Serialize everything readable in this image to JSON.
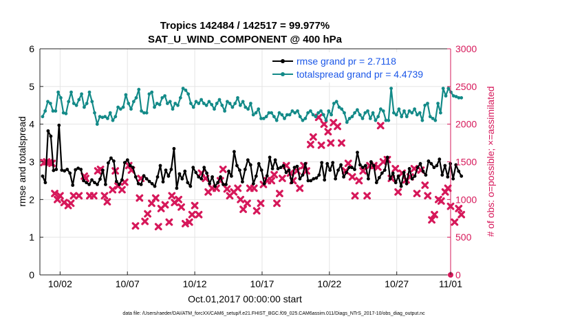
{
  "chart_data": {
    "type": "line",
    "title": "Tropics 142484 / 142517 = 99.977%",
    "subtitle": "SAT_U_WIND_COMPONENT @ 400 hPa",
    "xlabel": "Oct.01,2017 00:00:00 start",
    "ylabel_left": "rmse and totalspread",
    "ylabel_right": "# of obs: o=possible; ×=assimilated",
    "footer": "data file: /Users/raeder/DAI/ATM_forcXX/CAM6_setup/f.e21.FHIST_BGC.f09_025.CAM6assim.011/Diags_NTrS_2017-10/obs_diag_output.nc",
    "xlim": [
      0.5,
      31.0
    ],
    "ylim_left": [
      0,
      6
    ],
    "ylim_right": [
      0,
      3000
    ],
    "x_ticks": [
      2,
      7,
      12,
      17,
      22,
      27,
      32
    ],
    "x_tick_labels": [
      "10/02",
      "10/07",
      "10/12",
      "10/17",
      "10/22",
      "10/27",
      "11/01"
    ],
    "y_left_ticks": [
      "0",
      "1",
      "2",
      "3",
      "4",
      "5",
      "6"
    ],
    "y_right_ticks": [
      "0",
      "500",
      "1000",
      "1500",
      "2000",
      "2500",
      "3000"
    ],
    "colors": {
      "rmse": "#000000",
      "spread": "#138a88",
      "obs": "#d6185a",
      "legend_text": "#1a56e8"
    },
    "series": [
      {
        "name": "rmse grand pr = 2.7118",
        "axis": "left",
        "color": "#000000",
        "values": [
          2.62,
          2.45,
          3.82,
          3.68,
          2.77,
          2.8,
          3.97,
          2.78,
          2.76,
          2.8,
          2.7,
          2.38,
          2.79,
          2.83,
          2.8,
          2.5,
          2.45,
          2.4,
          2.52,
          2.45,
          2.4,
          2.54,
          2.78,
          2.4,
          2.97,
          3.1,
          3.02,
          2.48,
          2.4,
          2.52,
          2.98,
          3.05,
          2.9,
          2.85,
          2.6,
          2.42,
          2.4,
          2.63,
          2.55,
          2.48,
          2.42,
          2.35,
          2.6,
          2.9,
          2.47,
          2.78,
          2.62,
          2.8,
          3.35,
          2.3,
          2.68,
          2.55,
          2.75,
          2.45,
          2.35,
          2.85,
          2.72,
          2.6,
          2.55,
          2.85,
          2.7,
          2.42,
          2.6,
          2.35,
          2.45,
          2.6,
          2.4,
          2.4,
          2.75,
          2.62,
          3.27,
          2.9,
          2.78,
          2.47,
          2.8,
          3.05,
          2.92,
          2.42,
          2.62,
          2.95,
          2.78,
          2.42,
          2.63,
          3.12,
          2.82,
          3.05,
          2.82,
          2.85,
          2.9,
          2.72,
          2.78,
          2.45,
          2.85,
          2.88,
          2.55,
          2.65,
          2.95,
          2.5,
          2.5,
          2.55,
          2.57,
          2.65,
          2.98,
          2.52,
          2.95,
          2.78,
          2.98,
          2.55,
          2.78,
          2.92,
          2.6,
          2.72,
          2.85,
          2.85,
          2.8,
          3.25,
          2.92,
          2.85,
          2.9,
          2.55,
          3.0,
          2.9,
          2.45,
          2.58,
          2.7,
          2.78,
          3.12,
          2.55,
          2.7,
          2.45,
          2.62,
          2.35,
          2.72,
          2.42,
          2.82,
          2.55,
          2.62,
          2.85,
          2.95,
          2.75,
          2.65,
          3.02,
          2.95,
          2.85,
          2.9,
          3.07,
          2.65,
          2.9,
          2.6,
          2.95,
          2.55,
          2.92,
          2.75,
          2.62
        ]
      },
      {
        "name": "totalspread grand pr = 4.4739",
        "axis": "left",
        "color": "#138a88",
        "values": [
          4.2,
          4.35,
          4.6,
          4.55,
          4.35,
          4.35,
          4.85,
          4.7,
          4.3,
          4.28,
          4.6,
          4.85,
          4.55,
          4.5,
          4.65,
          4.8,
          4.45,
          4.55,
          4.85,
          4.6,
          4.3,
          4.0,
          4.2,
          4.18,
          4.2,
          4.15,
          4.3,
          4.1,
          4.2,
          4.45,
          4.4,
          4.45,
          4.78,
          4.55,
          4.4,
          4.6,
          4.7,
          4.92,
          4.35,
          4.3,
          4.3,
          4.8,
          4.85,
          4.45,
          4.55,
          4.52,
          4.7,
          4.75,
          4.55,
          4.6,
          4.4,
          4.55,
          4.5,
          4.7,
          4.95,
          4.9,
          4.8,
          4.55,
          4.45,
          4.6,
          4.55,
          4.65,
          4.55,
          4.5,
          4.6,
          4.52,
          4.4,
          4.55,
          4.65,
          4.5,
          4.35,
          4.6,
          4.55,
          4.45,
          4.55,
          4.7,
          4.5,
          4.6,
          4.45,
          4.4,
          4.55,
          4.25,
          4.3,
          4.4,
          4.15,
          4.15,
          4.2,
          4.3,
          4.3,
          4.2,
          4.1,
          4.3,
          4.25,
          4.15,
          4.25,
          4.25,
          4.35,
          4.3,
          4.35,
          4.2,
          4.1,
          4.15,
          4.3,
          4.35,
          4.25,
          4.2,
          4.3,
          4.35,
          4.25,
          4.1,
          4.35,
          4.25,
          4.55,
          4.6,
          4.45,
          4.4,
          4.3,
          4.05,
          4.15,
          4.2,
          4.3,
          4.38,
          4.25,
          4.15,
          4.3,
          4.35,
          4.15,
          4.3,
          4.1,
          4.2,
          4.4,
          4.35,
          4.1,
          4.1,
          4.95,
          4.3,
          4.25,
          4.4,
          4.2,
          4.35,
          4.2,
          4.35,
          4.3,
          4.4,
          4.25,
          4.3,
          4.1,
          4.5,
          4.55,
          4.2,
          4.15,
          4.1,
          4.55,
          4.3,
          4.95,
          4.75,
          4.95,
          4.85,
          4.75,
          4.73,
          4.7,
          4.7
        ]
      }
    ],
    "obs_assimilated": {
      "name": "# of obs assimilated",
      "axis": "right",
      "color": "#d6185a",
      "points": [
        [
          0.8,
          1490
        ],
        [
          1.0,
          1500
        ],
        [
          1.2,
          1490
        ],
        [
          1.4,
          1480
        ],
        [
          1.6,
          1080
        ],
        [
          1.8,
          1000
        ],
        [
          2.0,
          1050
        ],
        [
          2.3,
          960
        ],
        [
          2.6,
          920
        ],
        [
          2.8,
          950
        ],
        [
          3.0,
          1050
        ],
        [
          3.4,
          1050
        ],
        [
          3.8,
          1310
        ],
        [
          3.9,
          1280
        ],
        [
          4.2,
          1050
        ],
        [
          4.5,
          1050
        ],
        [
          4.8,
          1380
        ],
        [
          5.0,
          1400
        ],
        [
          5.3,
          1050
        ],
        [
          5.5,
          970
        ],
        [
          5.9,
          1130
        ],
        [
          6.1,
          1380
        ],
        [
          6.3,
          1180
        ],
        [
          6.6,
          1130
        ],
        [
          6.8,
          1230
        ],
        [
          7.1,
          1450
        ],
        [
          7.3,
          1390
        ],
        [
          7.6,
          650
        ],
        [
          7.9,
          1020
        ],
        [
          8.0,
          1280
        ],
        [
          8.3,
          710
        ],
        [
          8.5,
          810
        ],
        [
          8.8,
          950
        ],
        [
          9.1,
          1020
        ],
        [
          9.3,
          640
        ],
        [
          9.5,
          880
        ],
        [
          9.8,
          930
        ],
        [
          10.1,
          700
        ],
        [
          10.3,
          1050
        ],
        [
          10.5,
          960
        ],
        [
          10.8,
          1000
        ],
        [
          11.0,
          900
        ],
        [
          11.3,
          680
        ],
        [
          11.6,
          700
        ],
        [
          11.8,
          800
        ],
        [
          12.0,
          920
        ],
        [
          12.3,
          800
        ],
        [
          12.5,
          1350
        ],
        [
          12.8,
          1280
        ],
        [
          13.0,
          1100
        ],
        [
          13.3,
          1150
        ],
        [
          13.6,
          1150
        ],
        [
          13.9,
          1250
        ],
        [
          14.1,
          1400
        ],
        [
          14.4,
          1140
        ],
        [
          14.6,
          1050
        ],
        [
          14.9,
          1100
        ],
        [
          15.2,
          1150
        ],
        [
          15.4,
          1000
        ],
        [
          15.6,
          870
        ],
        [
          15.9,
          950
        ],
        [
          16.1,
          1150
        ],
        [
          16.4,
          1150
        ],
        [
          16.6,
          850
        ],
        [
          16.9,
          950
        ],
        [
          17.1,
          1200
        ],
        [
          17.4,
          1250
        ],
        [
          17.7,
          1250
        ],
        [
          17.9,
          1330
        ],
        [
          18.1,
          950
        ],
        [
          18.3,
          1080
        ],
        [
          18.5,
          1280
        ],
        [
          18.8,
          1450
        ],
        [
          19.1,
          1350
        ],
        [
          19.3,
          1250
        ],
        [
          19.6,
          1380
        ],
        [
          19.8,
          1150
        ],
        [
          20.1,
          1450
        ],
        [
          20.3,
          1380
        ],
        [
          20.6,
          1730
        ],
        [
          20.8,
          1830
        ],
        [
          21.2,
          2090
        ],
        [
          21.4,
          1720
        ],
        [
          21.6,
          2000
        ],
        [
          21.9,
          1900
        ],
        [
          22.1,
          1750
        ],
        [
          22.3,
          2020
        ],
        [
          22.6,
          1970
        ],
        [
          22.9,
          1750
        ],
        [
          23.2,
          1380
        ],
        [
          23.4,
          1480
        ],
        [
          23.7,
          1300
        ],
        [
          23.9,
          1050
        ],
        [
          24.2,
          1250
        ],
        [
          24.5,
          1380
        ],
        [
          24.8,
          1050
        ],
        [
          25.0,
          1450
        ],
        [
          25.3,
          1450
        ],
        [
          25.6,
          1430
        ],
        [
          25.8,
          1980
        ],
        [
          26.0,
          1500
        ],
        [
          26.3,
          1530
        ],
        [
          26.6,
          1280
        ],
        [
          26.9,
          1410
        ],
        [
          27.1,
          1100
        ],
        [
          27.4,
          1350
        ],
        [
          27.7,
          1260
        ],
        [
          28.0,
          1300
        ],
        [
          28.3,
          1410
        ],
        [
          28.5,
          1080
        ],
        [
          28.8,
          1390
        ],
        [
          29.1,
          1190
        ],
        [
          29.3,
          1050
        ],
        [
          29.6,
          730
        ],
        [
          29.8,
          800
        ],
        [
          30.1,
          1000
        ],
        [
          30.3,
          980
        ],
        [
          30.6,
          1100
        ],
        [
          30.8,
          1150
        ],
        [
          31.0,
          910
        ],
        [
          31.3,
          700
        ],
        [
          31.6,
          880
        ],
        [
          31.8,
          800
        ]
      ],
      "last_point": [
        32.0,
        0
      ]
    },
    "legend_position": "top-right"
  }
}
